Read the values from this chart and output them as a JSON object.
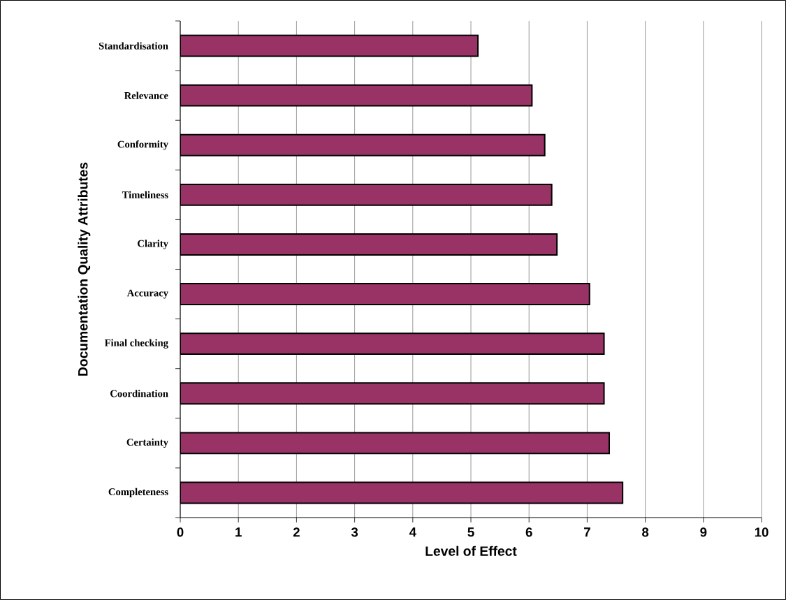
{
  "chart_data": {
    "type": "bar",
    "orientation": "horizontal",
    "xlabel": "Level of Effect",
    "ylabel": "Documentation Quality Attributes",
    "categories": [
      "Standardisation",
      "Relevance",
      "Conformity",
      "Timeliness",
      "Clarity",
      "Accuracy",
      "Final checking",
      "Coordination",
      "Certainty",
      "Completeness"
    ],
    "values": [
      5.12,
      6.05,
      6.27,
      6.39,
      6.48,
      7.04,
      7.29,
      7.29,
      7.38,
      7.61
    ],
    "color": "#993366",
    "xlim": [
      0,
      10
    ],
    "xticks": [
      0,
      1,
      2,
      3,
      4,
      5,
      6,
      7,
      8,
      9,
      10
    ],
    "grid": "x"
  }
}
